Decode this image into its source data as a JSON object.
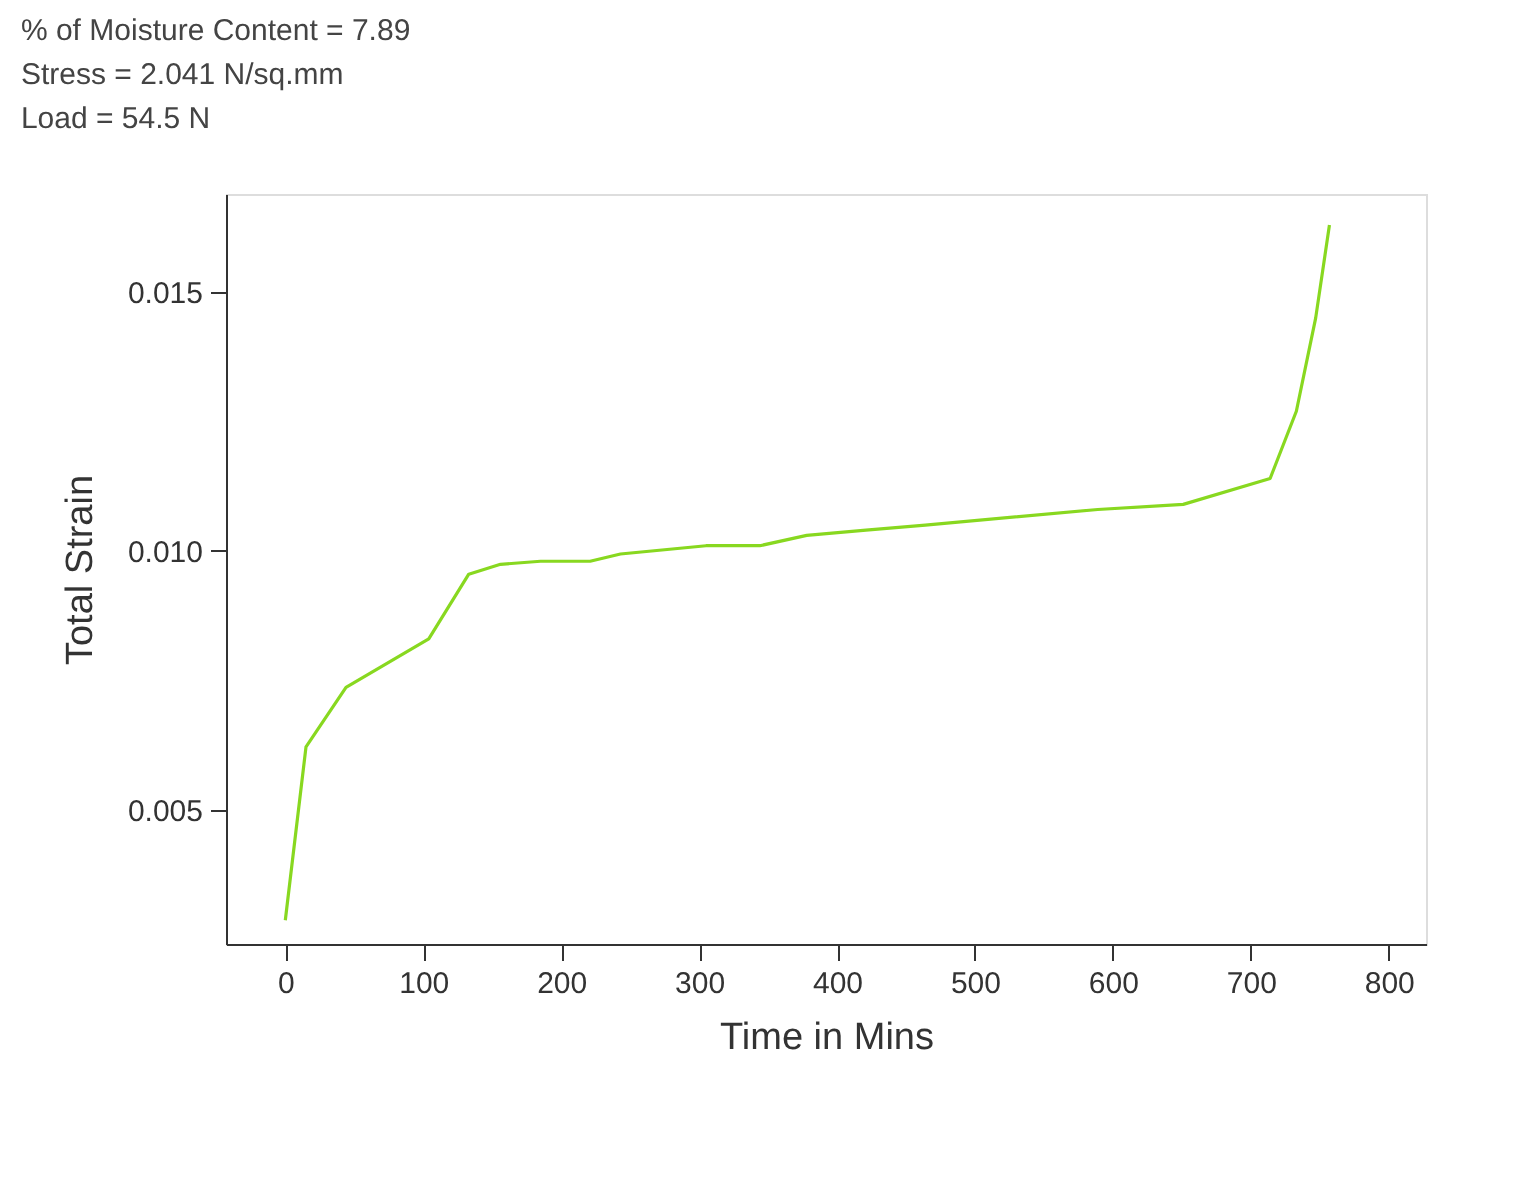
{
  "chart_data": {
    "type": "line",
    "annotations": [
      "% of Moisture Content = 7.89",
      "Stress = 2.041 N/sq.mm",
      "Load = 54.5 N"
    ],
    "xlabel": "Time in Mins",
    "ylabel": "Total Strain",
    "x": [
      0,
      15,
      44,
      104,
      133,
      156,
      185,
      221,
      243,
      305,
      344,
      378,
      421,
      464,
      589,
      651,
      714,
      733,
      747,
      757
    ],
    "series": [
      {
        "color": "#88d820",
        "values": [
          0.00286,
          0.00621,
          0.00736,
          0.0083,
          0.00955,
          0.00974,
          0.0098,
          0.0098,
          0.00994,
          0.0101,
          0.0101,
          0.0103,
          0.0104,
          0.0105,
          0.0108,
          0.0109,
          0.0114,
          0.0127,
          0.0145,
          0.0163
        ]
      }
    ],
    "xlim": [
      -43,
      827
    ],
    "ylim": [
      0.0024,
      0.0169
    ],
    "xticks": [
      0,
      100,
      200,
      300,
      400,
      500,
      600,
      700,
      800
    ],
    "yticks": [
      {
        "value": 0.005,
        "label": "0.005"
      },
      {
        "value": 0.01,
        "label": "0.010"
      },
      {
        "value": 0.015,
        "label": "0.015"
      }
    ],
    "grid": false,
    "marker": "none",
    "line_style": "solid"
  }
}
